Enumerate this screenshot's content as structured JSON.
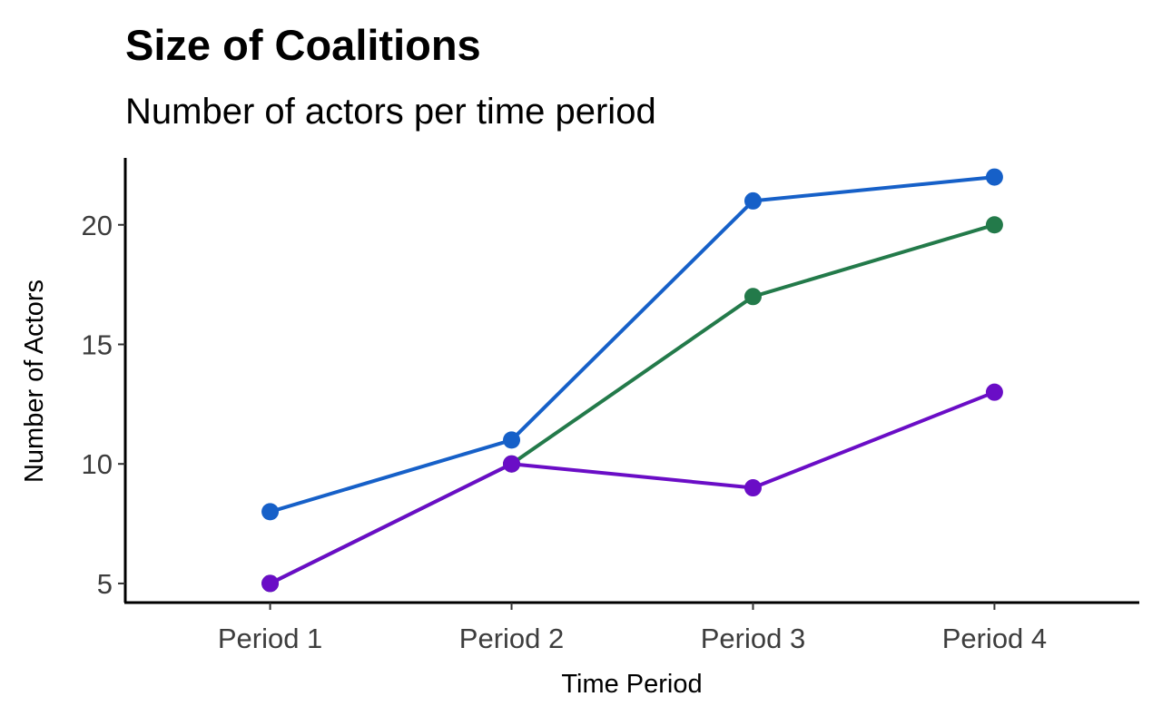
{
  "chart_data": {
    "type": "line",
    "title": "Size of Coalitions",
    "subtitle": "Number of actors per time period",
    "xlabel": "Time Period",
    "ylabel": "Number of Actors",
    "categories": [
      "Period 1",
      "Period 2",
      "Period 3",
      "Period 4"
    ],
    "yticks": [
      5,
      10,
      15,
      20
    ],
    "ylim": [
      4.2,
      22.8
    ],
    "grid": false,
    "legend": "none",
    "series": [
      {
        "color": "#1660c8",
        "values": [
          8,
          11,
          21,
          22
        ]
      },
      {
        "color": "#237a4a",
        "values": [
          5,
          10,
          17,
          20
        ]
      },
      {
        "color": "#6a0dc6",
        "values": [
          5,
          10,
          9,
          13
        ]
      }
    ]
  }
}
